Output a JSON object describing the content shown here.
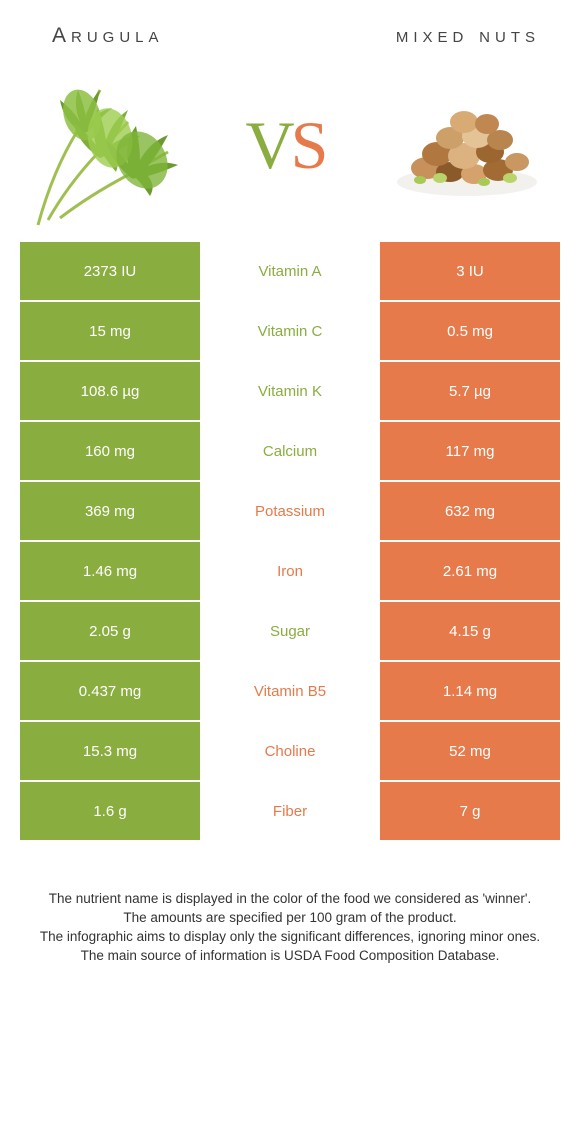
{
  "colors": {
    "green": "#8aad3f",
    "orange": "#e67a4a",
    "text": "#333333",
    "white": "#ffffff"
  },
  "header": {
    "left": "Arugula",
    "right": "mixed nuts"
  },
  "vs": {
    "v": "V",
    "s": "S"
  },
  "rows": [
    {
      "left": "2373 IU",
      "label": "Vitamin A",
      "right": "3 IU",
      "winner": "left"
    },
    {
      "left": "15 mg",
      "label": "Vitamin C",
      "right": "0.5 mg",
      "winner": "left"
    },
    {
      "left": "108.6 µg",
      "label": "Vitamin K",
      "right": "5.7 µg",
      "winner": "left"
    },
    {
      "left": "160 mg",
      "label": "Calcium",
      "right": "117 mg",
      "winner": "left"
    },
    {
      "left": "369 mg",
      "label": "Potassium",
      "right": "632 mg",
      "winner": "right"
    },
    {
      "left": "1.46 mg",
      "label": "Iron",
      "right": "2.61 mg",
      "winner": "right"
    },
    {
      "left": "2.05 g",
      "label": "Sugar",
      "right": "4.15 g",
      "winner": "left"
    },
    {
      "left": "0.437 mg",
      "label": "Vitamin B5",
      "right": "1.14 mg",
      "winner": "right"
    },
    {
      "left": "15.3 mg",
      "label": "Choline",
      "right": "52 mg",
      "winner": "right"
    },
    {
      "left": "1.6 g",
      "label": "Fiber",
      "right": "7 g",
      "winner": "right"
    }
  ],
  "footer": {
    "line1": "The nutrient name is displayed in the color of the food we considered as 'winner'.",
    "line2": "The amounts are specified per 100 gram of the product.",
    "line3": "The infographic aims to display only the significant differences, ignoring minor ones.",
    "line4": "The main source of information is USDA Food Composition Database."
  }
}
